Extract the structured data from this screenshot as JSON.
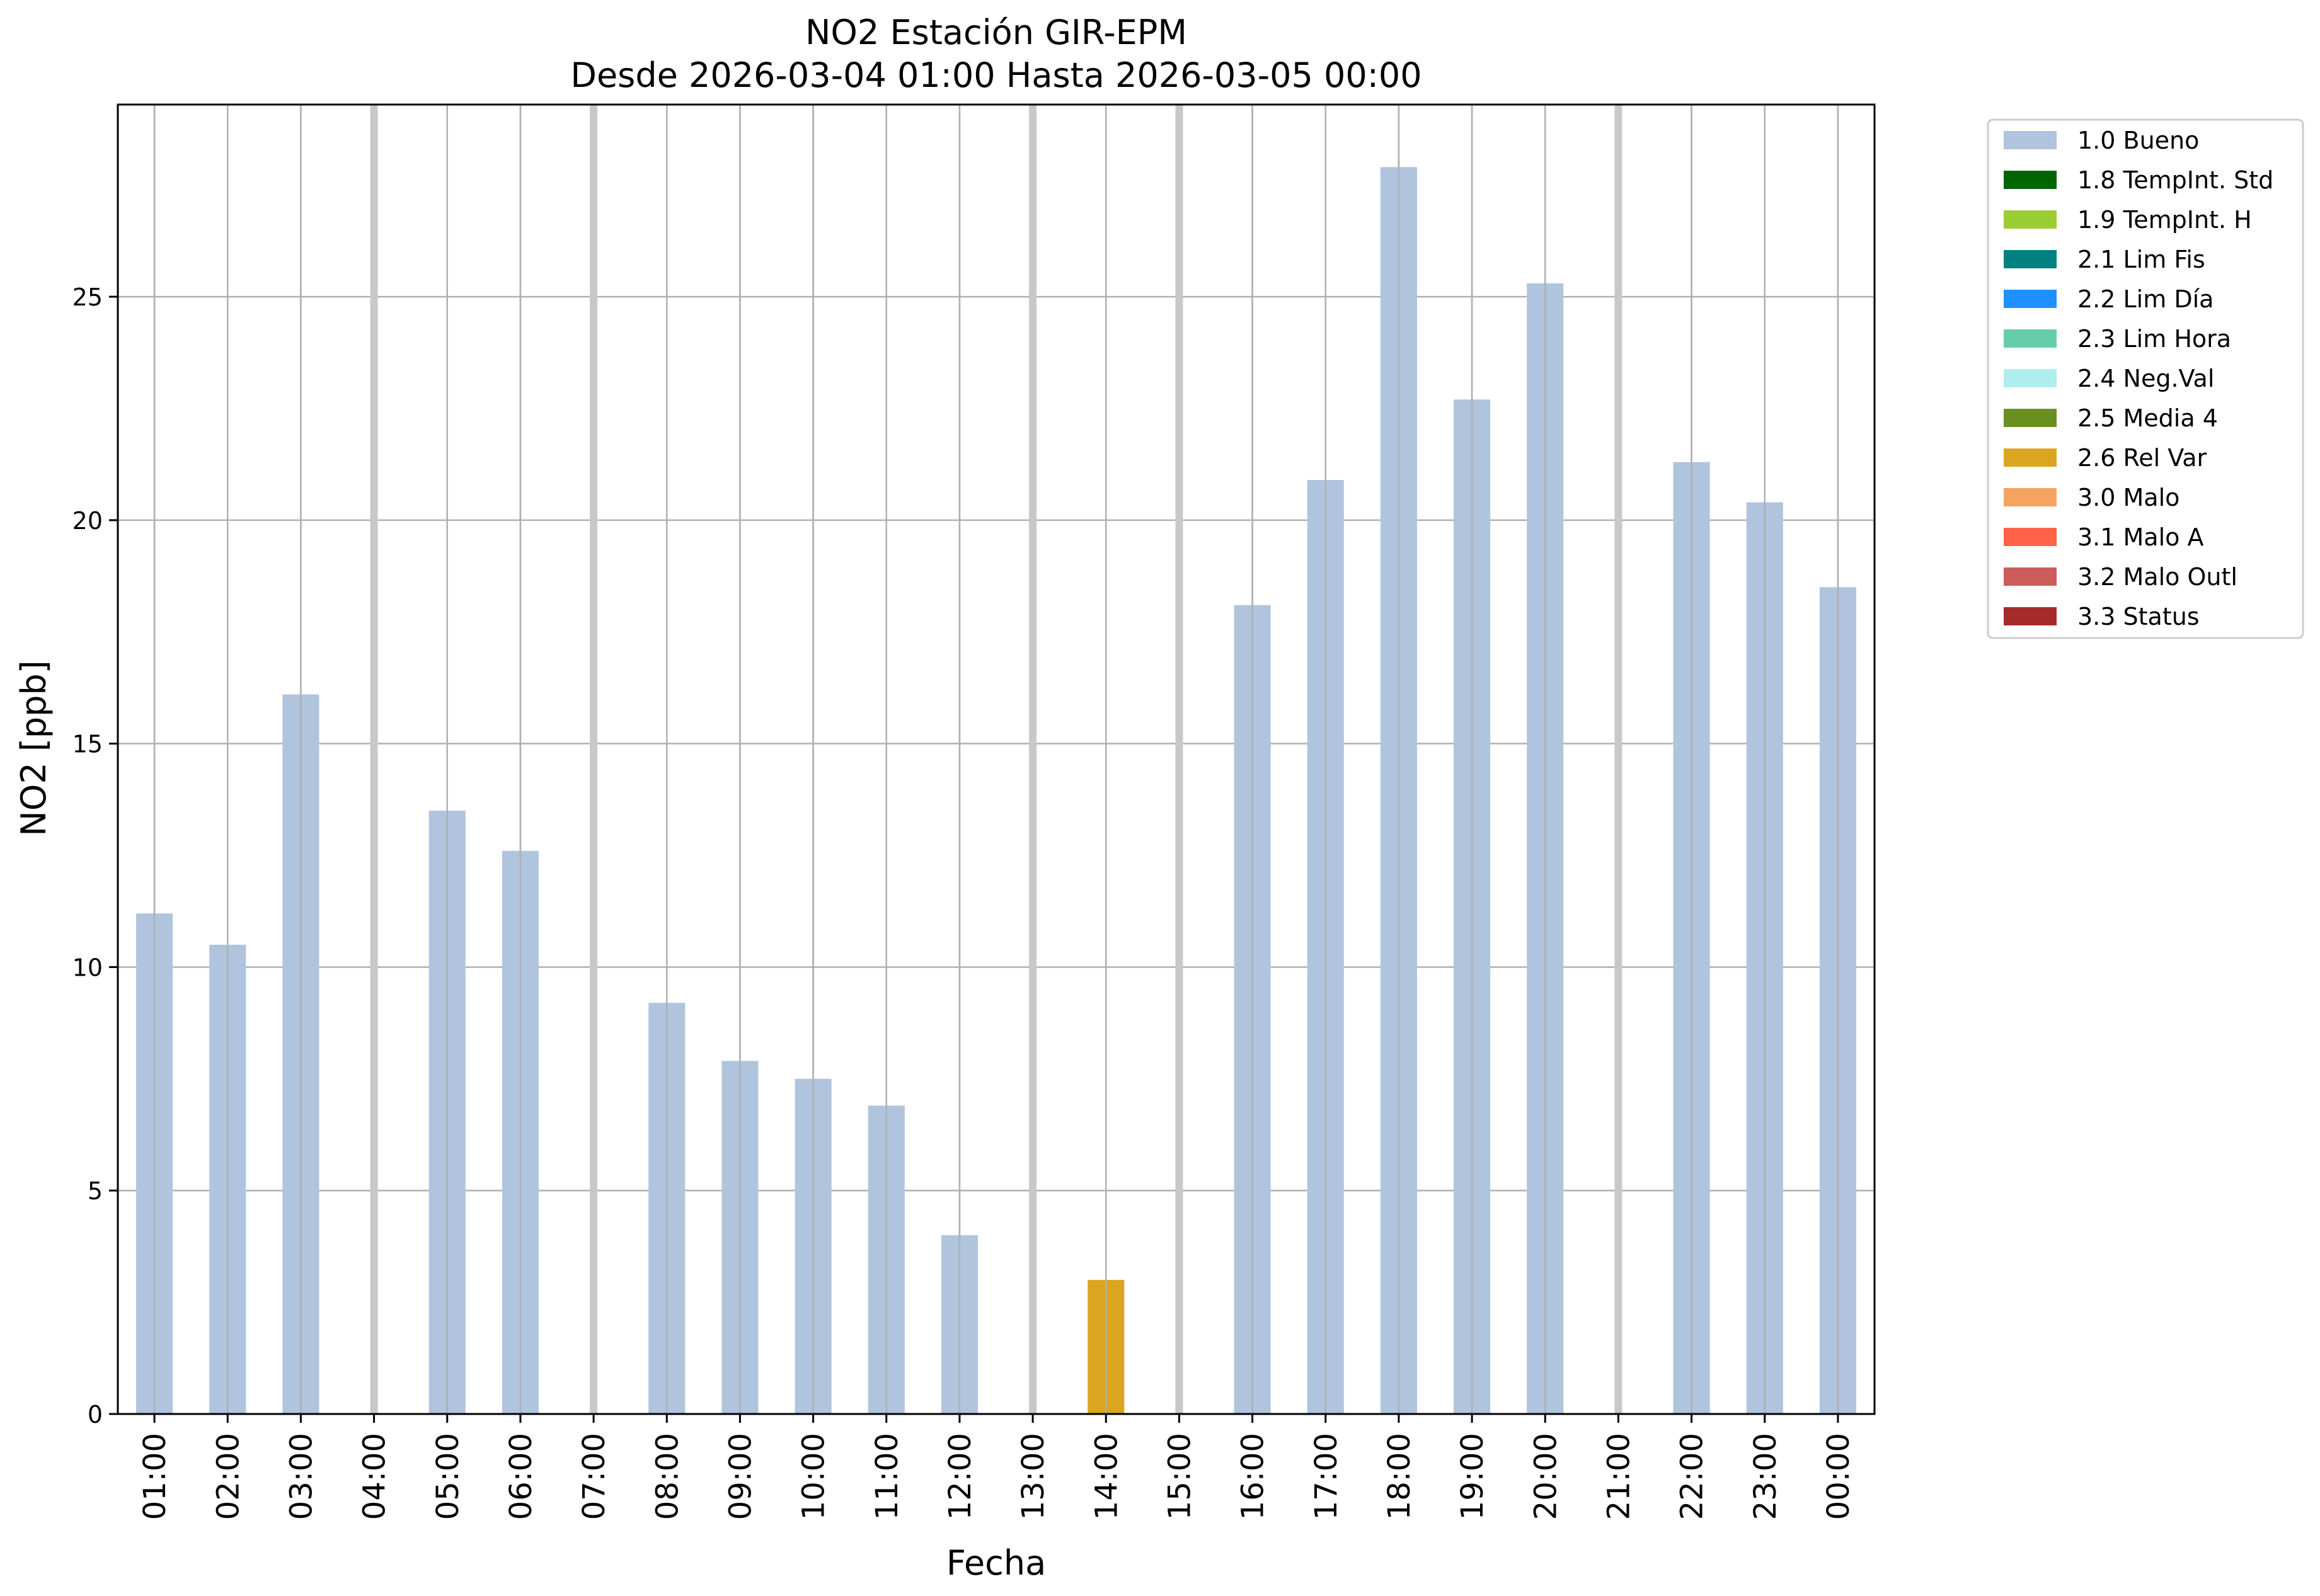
{
  "chart_data": {
    "type": "bar",
    "title": "NO2 Estación GIR-EPM",
    "subtitle": "Desde 2026-03-04 01:00 Hasta 2026-03-05 00:00",
    "xlabel": "Fecha",
    "ylabel": "NO2 [ppb]",
    "ylim": [
      0,
      29.3
    ],
    "yticks": [
      0,
      5,
      10,
      15,
      20,
      25
    ],
    "grid": true,
    "legend_position": "outside-top-right",
    "categories": [
      "01:00",
      "02:00",
      "03:00",
      "04:00",
      "05:00",
      "06:00",
      "07:00",
      "08:00",
      "09:00",
      "10:00",
      "11:00",
      "12:00",
      "13:00",
      "14:00",
      "15:00",
      "16:00",
      "17:00",
      "18:00",
      "19:00",
      "20:00",
      "21:00",
      "22:00",
      "23:00",
      "00:00"
    ],
    "values": [
      11.2,
      10.5,
      16.1,
      null,
      13.5,
      12.6,
      null,
      9.2,
      7.9,
      7.5,
      6.9,
      4.0,
      null,
      3.0,
      null,
      18.1,
      20.9,
      27.9,
      22.7,
      25.3,
      null,
      21.3,
      20.4,
      18.5
    ],
    "flags": [
      "1.0",
      "1.0",
      "1.0",
      null,
      "1.0",
      "1.0",
      null,
      "1.0",
      "1.0",
      "1.0",
      "1.0",
      "1.0",
      null,
      "2.6",
      null,
      "1.0",
      "1.0",
      "1.0",
      "1.0",
      "1.0",
      null,
      "1.0",
      "1.0",
      "1.0"
    ],
    "missing_color": "#c8c8c8",
    "legend": [
      {
        "code": "1.0",
        "label": "1.0 Bueno",
        "color": "#b0c4de"
      },
      {
        "code": "1.8",
        "label": "1.8 TempInt. Std",
        "color": "#006400"
      },
      {
        "code": "1.9",
        "label": "1.9 TempInt. H",
        "color": "#9acd32"
      },
      {
        "code": "2.1",
        "label": "2.1 Lim Fis",
        "color": "#008080"
      },
      {
        "code": "2.2",
        "label": "2.2 Lim Día",
        "color": "#1e90ff"
      },
      {
        "code": "2.3",
        "label": "2.3 Lim Hora",
        "color": "#66cdaa"
      },
      {
        "code": "2.4",
        "label": "2.4 Neg.Val",
        "color": "#afeeee"
      },
      {
        "code": "2.5",
        "label": "2.5 Media 4",
        "color": "#6b8e23"
      },
      {
        "code": "2.6",
        "label": "2.6 Rel Var",
        "color": "#daa520"
      },
      {
        "code": "3.0",
        "label": "3.0 Malo",
        "color": "#f4a460"
      },
      {
        "code": "3.1",
        "label": "3.1 Malo A",
        "color": "#ff6347"
      },
      {
        "code": "3.2",
        "label": "3.2 Malo Outl",
        "color": "#cd5c5c"
      },
      {
        "code": "3.3",
        "label": "3.3 Status",
        "color": "#a52a2a"
      }
    ]
  }
}
